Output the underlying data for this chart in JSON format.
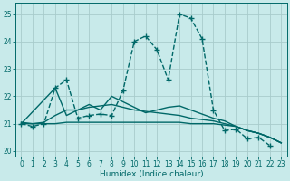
{
  "background_color": "#c8eaea",
  "grid_color": "#a8cccc",
  "line_color": "#006868",
  "xlabel": "Humidex (Indice chaleur)",
  "xlim": [
    -0.5,
    23.5
  ],
  "ylim": [
    19.8,
    25.4
  ],
  "yticks": [
    20,
    21,
    22,
    23,
    24,
    25
  ],
  "xticks": [
    0,
    1,
    2,
    3,
    4,
    5,
    6,
    7,
    8,
    9,
    10,
    11,
    12,
    13,
    14,
    15,
    16,
    17,
    18,
    19,
    20,
    21,
    22,
    23
  ],
  "series": [
    {
      "x": [
        0,
        1,
        2,
        3,
        4,
        5,
        6,
        7,
        8,
        9,
        10,
        11,
        12,
        13,
        14,
        15,
        16,
        17,
        18,
        19,
        20,
        21,
        22
      ],
      "y": [
        21.0,
        20.9,
        21.0,
        22.3,
        22.6,
        21.2,
        21.3,
        21.35,
        21.3,
        22.2,
        24.0,
        24.2,
        23.7,
        22.6,
        25.0,
        24.85,
        24.1,
        21.5,
        20.75,
        20.8,
        20.45,
        20.5,
        20.2
      ],
      "marker": "+",
      "markersize": 4,
      "linewidth": 1.0,
      "linestyle": "--"
    },
    {
      "x": [
        0,
        1,
        2,
        3,
        4,
        5,
        6,
        7,
        8,
        9,
        10,
        11,
        12,
        13,
        14,
        15,
        16,
        17,
        18,
        19,
        20,
        21,
        22,
        23
      ],
      "y": [
        21.0,
        21.0,
        21.0,
        21.0,
        21.05,
        21.05,
        21.05,
        21.05,
        21.05,
        21.05,
        21.05,
        21.05,
        21.05,
        21.05,
        21.05,
        21.0,
        21.0,
        21.0,
        20.95,
        20.9,
        20.75,
        20.65,
        20.5,
        20.3
      ],
      "marker": null,
      "markersize": 0,
      "linewidth": 1.0,
      "linestyle": "-"
    },
    {
      "x": [
        0,
        1,
        2,
        3,
        4,
        5,
        6,
        7,
        8,
        9,
        10,
        11,
        12,
        13,
        14,
        15,
        16,
        17,
        18,
        19,
        20,
        21,
        22,
        23
      ],
      "y": [
        21.05,
        21.0,
        21.05,
        21.3,
        21.5,
        21.5,
        21.6,
        21.65,
        21.7,
        21.6,
        21.5,
        21.45,
        21.4,
        21.35,
        21.3,
        21.2,
        21.15,
        21.1,
        21.0,
        20.9,
        20.75,
        20.65,
        20.5,
        20.3
      ],
      "marker": null,
      "markersize": 0,
      "linewidth": 1.0,
      "linestyle": "-"
    },
    {
      "x": [
        0,
        3,
        4,
        5,
        6,
        7,
        8,
        9,
        10,
        11,
        12,
        13,
        14,
        15,
        16,
        17,
        18,
        19,
        20,
        21,
        22,
        23
      ],
      "y": [
        21.0,
        22.3,
        21.3,
        21.5,
        21.7,
        21.5,
        22.0,
        21.8,
        21.6,
        21.4,
        21.5,
        21.6,
        21.65,
        21.5,
        21.35,
        21.2,
        21.1,
        20.9,
        20.75,
        20.65,
        20.5,
        20.3
      ],
      "marker": null,
      "markersize": 0,
      "linewidth": 1.0,
      "linestyle": "-"
    }
  ]
}
